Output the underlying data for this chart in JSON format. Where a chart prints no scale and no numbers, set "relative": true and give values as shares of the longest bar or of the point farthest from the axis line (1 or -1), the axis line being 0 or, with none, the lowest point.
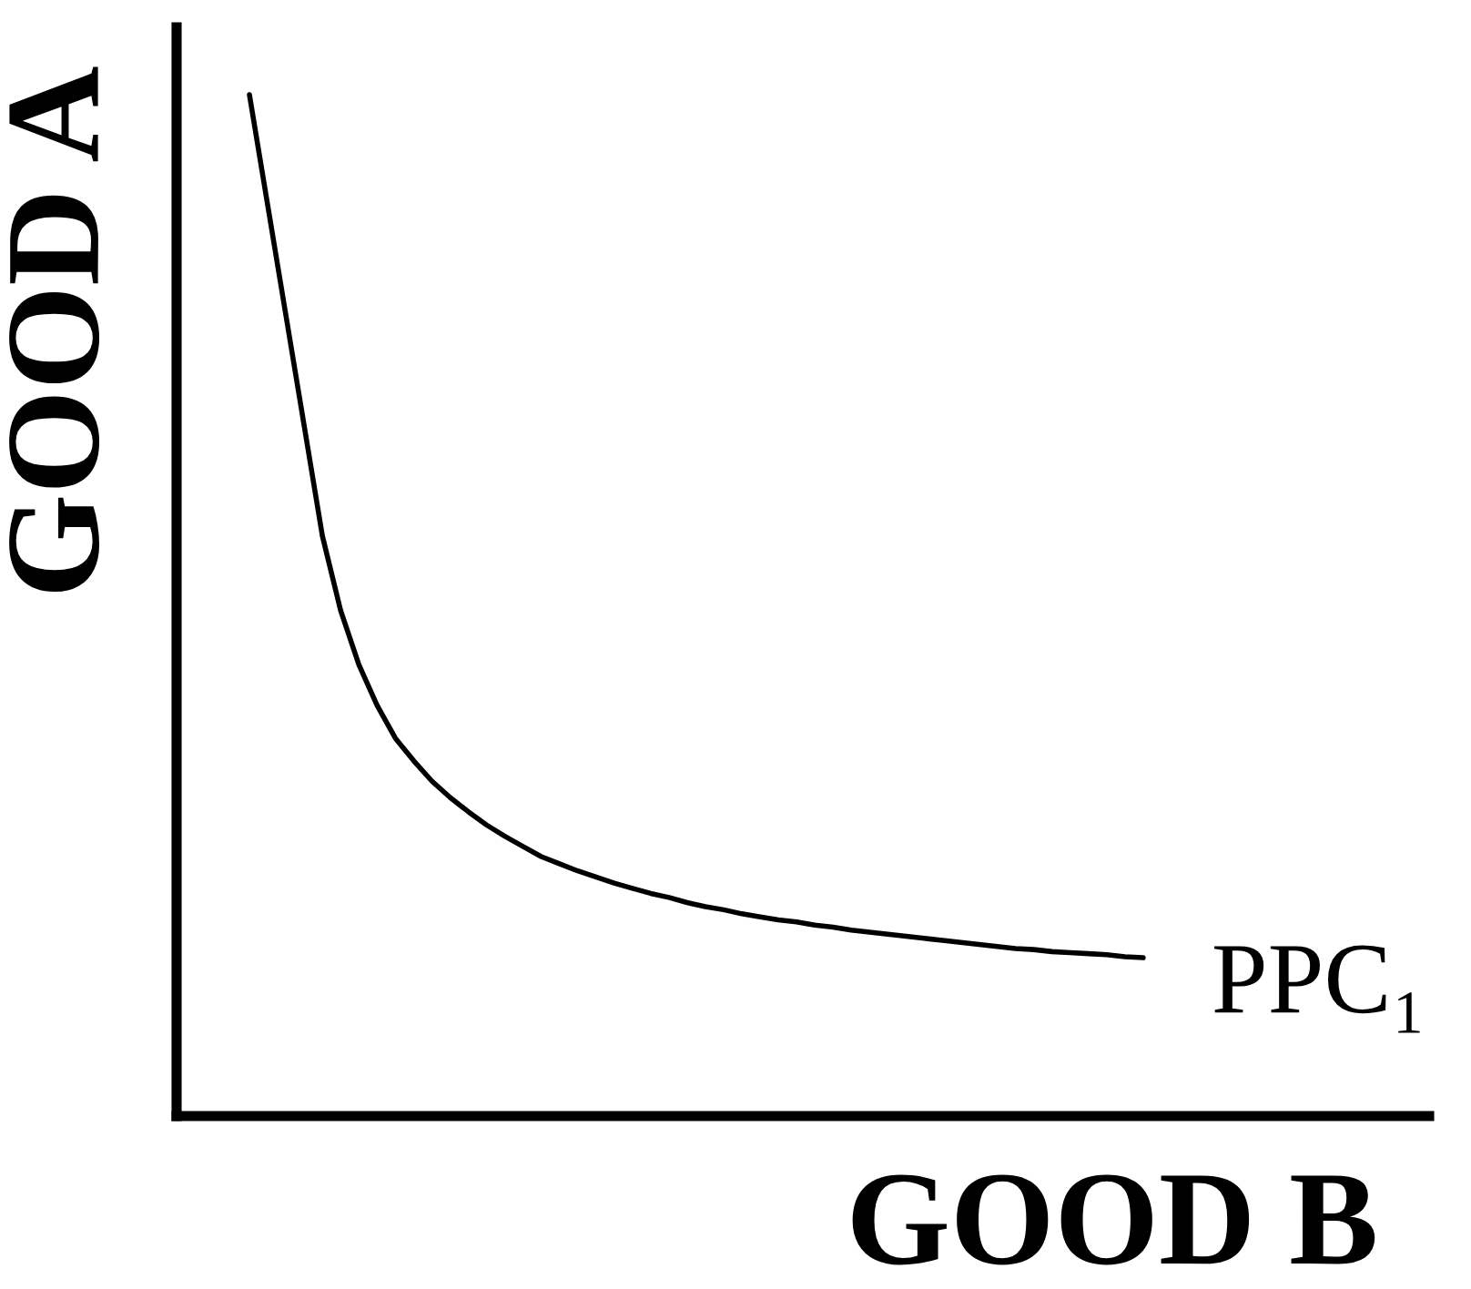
{
  "chart_data": {
    "type": "line",
    "relative": true,
    "xlabel": "GOOD B",
    "ylabel": "GOOD A",
    "categories": [
      null,
      null,
      null,
      null,
      null,
      null,
      null,
      null,
      null,
      null,
      null,
      null,
      null,
      null,
      null,
      null,
      null,
      null,
      null,
      null,
      null,
      null,
      null,
      null,
      null,
      null,
      null,
      null,
      null,
      null,
      null,
      null,
      null,
      null,
      null,
      null,
      null,
      null,
      null,
      null,
      null,
      null,
      null,
      null,
      null,
      null,
      null,
      null,
      null,
      null
    ],
    "series": [
      {
        "name": "PPC₁",
        "color": "#000000",
        "values": [
          1.0,
          0.892,
          0.784,
          0.676,
          0.568,
          0.495,
          0.442,
          0.402,
          0.37,
          0.348,
          0.328,
          0.312,
          0.298,
          0.285,
          0.274,
          0.264,
          0.254,
          0.247,
          0.24,
          0.234,
          0.228,
          0.223,
          0.218,
          0.214,
          0.209,
          0.205,
          0.202,
          0.198,
          0.195,
          0.192,
          0.19,
          0.187,
          0.185,
          0.182,
          0.18,
          0.178,
          0.176,
          0.174,
          0.172,
          0.17,
          0.168,
          0.166,
          0.164,
          0.163,
          0.161,
          0.16,
          0.159,
          0.158,
          0.156,
          0.155
        ]
      }
    ]
  }
}
